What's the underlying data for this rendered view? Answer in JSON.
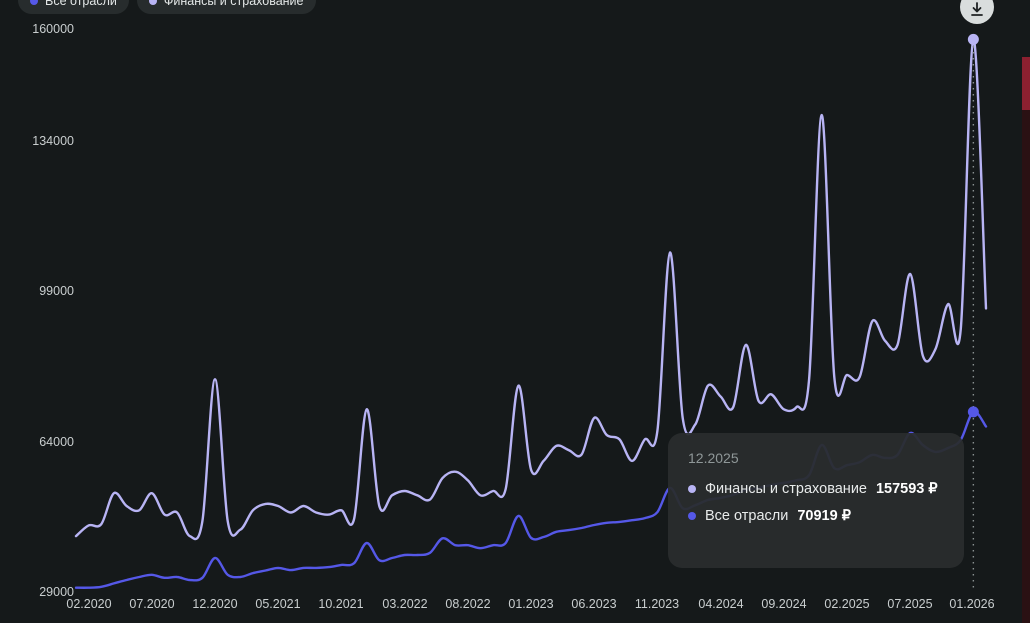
{
  "page": {
    "background": "#15191a"
  },
  "legend": {
    "items": [
      {
        "label": "Все отрасли",
        "color": "#5558e8"
      },
      {
        "label": "Финансы и страхование",
        "color": "#b8b4f4"
      }
    ]
  },
  "toolbar": {
    "download_button": {
      "icon": "download-icon"
    }
  },
  "tooltip": {
    "date": "12.2025",
    "rows": [
      {
        "label": "Финансы и страхование",
        "value": "157593 ₽",
        "color": "#b8b4f4"
      },
      {
        "label": "Все отрасли",
        "value": "70919 ₽",
        "color": "#5558e8"
      }
    ]
  },
  "chart_data": {
    "type": "line",
    "title": "",
    "xlabel": "",
    "ylabel": "",
    "grid": false,
    "legend_position": "top-left",
    "ylim": [
      29000,
      160000
    ],
    "y_ticks": [
      160000,
      134000,
      99000,
      64000,
      29000
    ],
    "x_tick_labels": [
      "02.2020",
      "07.2020",
      "12.2020",
      "05.2021",
      "10.2021",
      "03.2022",
      "08.2022",
      "01.2023",
      "06.2023",
      "11.2023",
      "04.2024",
      "09.2024",
      "02.2025",
      "07.2025",
      "01.2026"
    ],
    "hover": {
      "month": "12.2025",
      "index": 71
    },
    "x": [
      "01.2020",
      "02.2020",
      "03.2020",
      "04.2020",
      "05.2020",
      "06.2020",
      "07.2020",
      "08.2020",
      "09.2020",
      "10.2020",
      "11.2020",
      "12.2020",
      "01.2021",
      "02.2021",
      "03.2021",
      "04.2021",
      "05.2021",
      "06.2021",
      "07.2021",
      "08.2021",
      "09.2021",
      "10.2021",
      "11.2021",
      "12.2021",
      "01.2022",
      "02.2022",
      "03.2022",
      "04.2022",
      "05.2022",
      "06.2022",
      "07.2022",
      "08.2022",
      "09.2022",
      "10.2022",
      "11.2022",
      "12.2022",
      "01.2023",
      "02.2023",
      "03.2023",
      "04.2023",
      "05.2023",
      "06.2023",
      "07.2023",
      "08.2023",
      "09.2023",
      "10.2023",
      "11.2023",
      "12.2023",
      "01.2024",
      "02.2024",
      "03.2024",
      "04.2024",
      "05.2024",
      "06.2024",
      "07.2024",
      "08.2024",
      "09.2024",
      "10.2024",
      "11.2024",
      "12.2024",
      "01.2025",
      "02.2025",
      "03.2025",
      "04.2025",
      "05.2025",
      "06.2025",
      "07.2025",
      "08.2025",
      "09.2025",
      "10.2025",
      "11.2025",
      "12.2025",
      "01.2026"
    ],
    "series": [
      {
        "name": "Финансы и страхование",
        "color": "#b8b4f4",
        "values": [
          42000,
          44500,
          44800,
          52000,
          49000,
          48000,
          52000,
          47000,
          47500,
          42000,
          45500,
          78500,
          45500,
          43500,
          48000,
          49500,
          49000,
          47500,
          49000,
          47500,
          47000,
          48000,
          46000,
          71500,
          49000,
          51500,
          52500,
          51500,
          50500,
          55500,
          57000,
          55000,
          51500,
          52500,
          53000,
          77000,
          57500,
          59500,
          63000,
          62000,
          61000,
          69500,
          65500,
          64500,
          59500,
          64500,
          66500,
          108000,
          69500,
          68000,
          77000,
          74500,
          72000,
          86500,
          73500,
          75000,
          71500,
          72000,
          78500,
          140000,
          79000,
          79500,
          79000,
          92000,
          87500,
          86500,
          103000,
          84000,
          85500,
          96000,
          90000,
          157593,
          95000
        ]
      },
      {
        "name": "Все отрасли",
        "color": "#5558e8",
        "values": [
          30000,
          30000,
          30200,
          31000,
          31800,
          32500,
          33000,
          32300,
          32500,
          31800,
          32300,
          36900,
          33000,
          32500,
          33400,
          34000,
          34600,
          34100,
          34600,
          34600,
          34800,
          35300,
          35700,
          40400,
          36400,
          36900,
          37600,
          37600,
          38100,
          41500,
          39900,
          39900,
          39200,
          39900,
          40400,
          46700,
          41600,
          41800,
          43000,
          43400,
          43900,
          44600,
          45100,
          45300,
          45700,
          46200,
          47600,
          53200,
          48500,
          49200,
          50400,
          50900,
          51600,
          52700,
          53200,
          53900,
          54400,
          55000,
          56200,
          63200,
          57800,
          58500,
          59200,
          60900,
          60200,
          60900,
          66000,
          63200,
          61600,
          62500,
          64400,
          70919,
          67500
        ]
      }
    ]
  }
}
